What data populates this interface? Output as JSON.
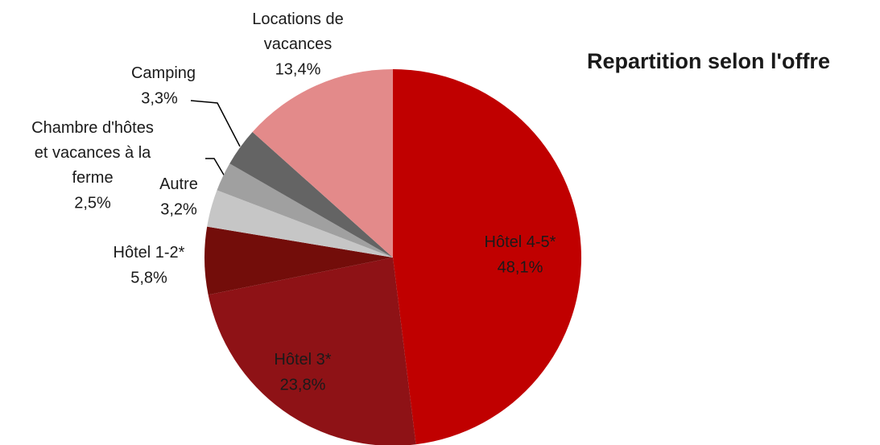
{
  "chart_data": {
    "type": "pie",
    "title": "Repartition selon l'offre",
    "categories": [
      "Hôtel 4-5*",
      "Hôtel 3*",
      "Hôtel 1-2*",
      "Autre",
      "Chambre d'hôtes\net vacances à la\nferme",
      "Camping",
      "Locations de\nvacances"
    ],
    "values": [
      48.1,
      23.8,
      5.8,
      3.2,
      2.5,
      3.3,
      13.4
    ],
    "value_labels": [
      "48,1%",
      "23,8%",
      "5,8%",
      "3,2%",
      "2,5%",
      "3,3%",
      "13,4%"
    ],
    "colors": [
      "#c00000",
      "#8e1216",
      "#730d0a",
      "#c6c6c6",
      "#a0a0a0",
      "#646464",
      "#e38a8a"
    ]
  }
}
